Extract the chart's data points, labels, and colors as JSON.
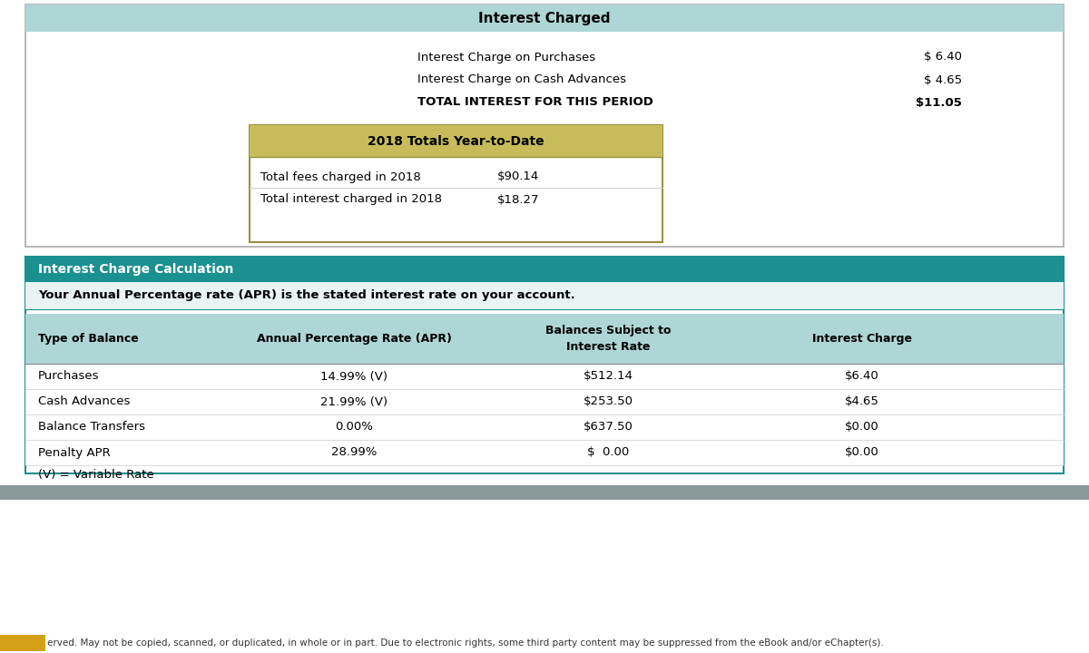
{
  "bg_color": "#ffffff",
  "top_section": {
    "header_text": "Interest Charged",
    "header_bg": "#aed6d6",
    "rows": [
      {
        "label": "Interest Charge on Purchases",
        "value": "$ 6.40",
        "bold": false
      },
      {
        "label": "Interest Charge on Cash Advances",
        "value": "$ 4.65",
        "bold": false
      },
      {
        "label": "TOTAL INTEREST FOR THIS PERIOD",
        "value": "$11.05",
        "bold": true
      }
    ],
    "ytd_box": {
      "header_text": "2018 Totals Year-to-Date",
      "header_bg": "#c8bc5a",
      "border_color": "#999040",
      "rows": [
        {
          "label": "Total fees charged in 2018",
          "value": "$90.14"
        },
        {
          "label": "Total interest charged in 2018",
          "value": "$18.27"
        }
      ]
    }
  },
  "bottom_section": {
    "header_text": "Interest Charge Calculation",
    "header_bg": "#1a9090",
    "header_text_color": "#ffffff",
    "subtitle": "Your Annual Percentage rate (APR) is the stated interest rate on your account.",
    "subtitle_bg": "#e8f4f4",
    "col_header_bg": "#aed6d6",
    "col_headers": [
      "Type of Balance",
      "Annual Percentage Rate (APR)",
      "Balances Subject to\nInterest Rate",
      "Interest Charge"
    ],
    "rows": [
      [
        "Purchases",
        "14.99% (V)",
        "$512.14",
        "$6.40"
      ],
      [
        "Cash Advances",
        "21.99% (V)",
        "$253.50",
        "$4.65"
      ],
      [
        "Balance Transfers",
        "0.00%",
        "$637.50",
        "$0.00"
      ],
      [
        "Penalty APR",
        "28.99%",
        "$  0.00",
        "$0.00"
      ]
    ],
    "footer": "(V) = Variable Rate",
    "border_color": "#1a9090"
  },
  "gray_bar_color": "#8a9a9a",
  "footer_text": "erved. May not be copied, scanned, or duplicated, in whole or in part. Due to electronic rights, some third party content may be suppressed from the eBook and/or eChapter(s).",
  "footer_highlight": "#d4a017"
}
